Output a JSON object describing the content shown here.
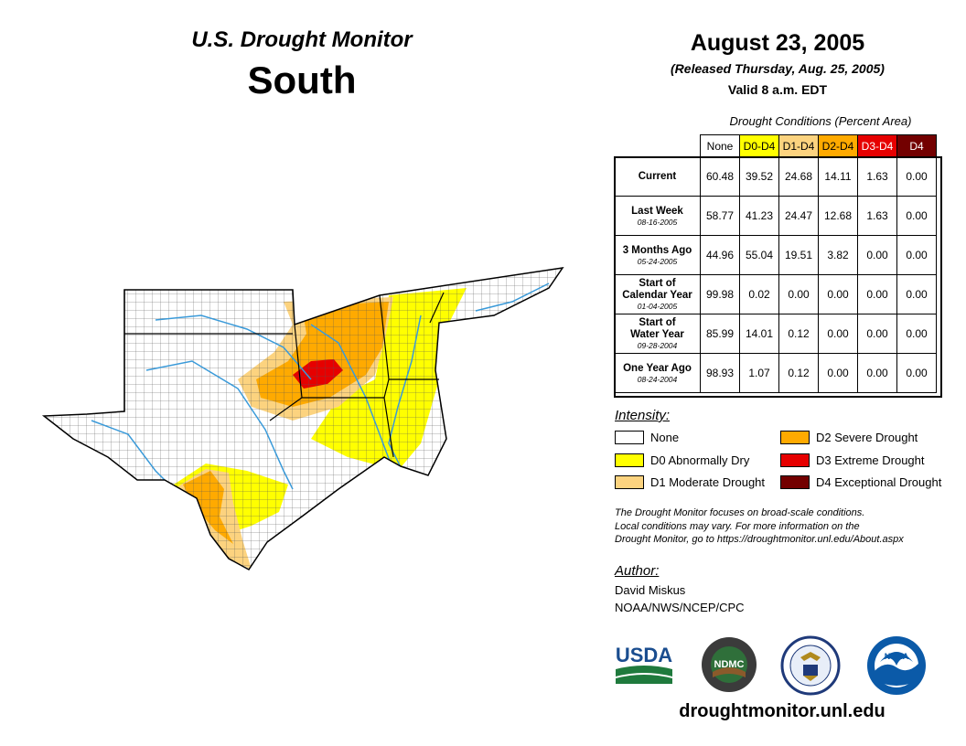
{
  "header": {
    "brand": "U.S. Drought Monitor",
    "region": "South",
    "date": "August 23, 2005",
    "released": "(Released Thursday, Aug. 25, 2005)",
    "valid": "Valid 8 a.m. EDT"
  },
  "table": {
    "caption": "Drought Conditions (Percent Area)",
    "columns": [
      "None",
      "D0-D4",
      "D1-D4",
      "D2-D4",
      "D3-D4",
      "D4"
    ],
    "column_colors": [
      "#ffffff",
      "#ffff00",
      "#fcd37f",
      "#ffaa00",
      "#e60000",
      "#730000"
    ],
    "rows": [
      {
        "label": "Current",
        "label2": "",
        "date": "",
        "values": [
          "60.48",
          "39.52",
          "24.68",
          "14.11",
          "1.63",
          "0.00"
        ]
      },
      {
        "label": "Last Week",
        "label2": "",
        "date": "08-16-2005",
        "values": [
          "58.77",
          "41.23",
          "24.47",
          "12.68",
          "1.63",
          "0.00"
        ]
      },
      {
        "label": "3 Months Ago",
        "label2": "",
        "date": "05-24-2005",
        "values": [
          "44.96",
          "55.04",
          "19.51",
          "3.82",
          "0.00",
          "0.00"
        ]
      },
      {
        "label": "Start of",
        "label2": "Calendar Year",
        "date": "01-04-2005",
        "values": [
          "99.98",
          "0.02",
          "0.00",
          "0.00",
          "0.00",
          "0.00"
        ]
      },
      {
        "label": "Start of",
        "label2": "Water Year",
        "date": "09-28-2004",
        "values": [
          "85.99",
          "14.01",
          "0.12",
          "0.00",
          "0.00",
          "0.00"
        ]
      },
      {
        "label": "One Year Ago",
        "label2": "",
        "date": "08-24-2004",
        "values": [
          "98.93",
          "1.07",
          "0.12",
          "0.00",
          "0.00",
          "0.00"
        ]
      }
    ]
  },
  "legend": {
    "title": "Intensity:",
    "items": [
      {
        "label": "None",
        "color": "#ffffff"
      },
      {
        "label": "D0 Abnormally Dry",
        "color": "#ffff00"
      },
      {
        "label": "D1 Moderate Drought",
        "color": "#fcd37f"
      },
      {
        "label": "D2 Severe Drought",
        "color": "#ffaa00"
      },
      {
        "label": "D3 Extreme Drought",
        "color": "#e60000"
      },
      {
        "label": "D4 Exceptional Drought",
        "color": "#730000"
      }
    ]
  },
  "note": {
    "line1": "The Drought Monitor focuses on broad-scale conditions.",
    "line2": "Local conditions may vary. For more information on the",
    "line3": "Drought Monitor, go to https://droughtmonitor.unl.edu/About.aspx"
  },
  "author": {
    "title": "Author:",
    "name": "David Miskus",
    "org": "NOAA/NWS/NCEP/CPC"
  },
  "logos": {
    "usda": "USDA",
    "ndmc": "NDMC",
    "noaa": "NOAA"
  },
  "website": "droughtmonitor.unl.edu",
  "map": {
    "region_name": "South",
    "colors": {
      "none": "#ffffff",
      "d0": "#ffff00",
      "d1": "#fcd37f",
      "d2": "#ffaa00",
      "d3": "#e60000",
      "rivers": "#3a9ad9"
    }
  }
}
